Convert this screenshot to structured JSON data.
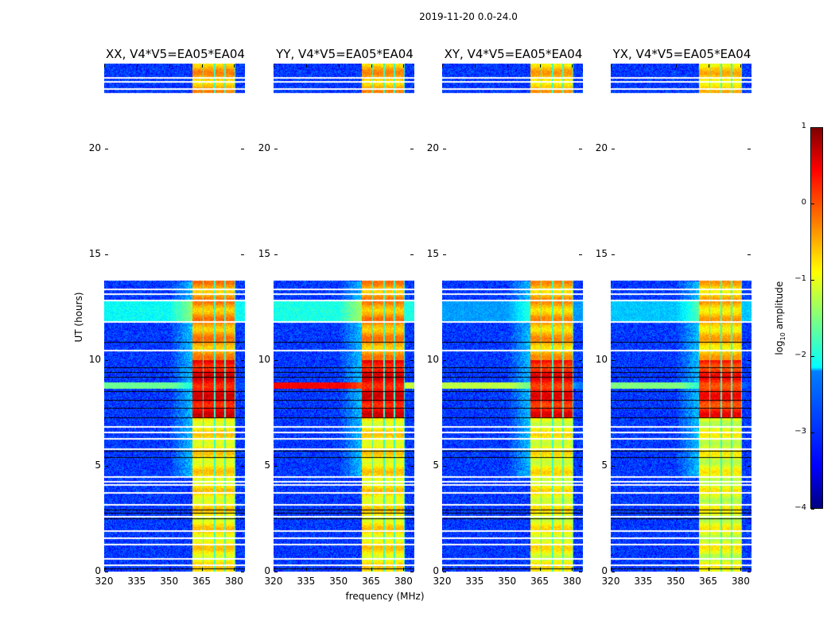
{
  "chart_data": {
    "type": "heatmap",
    "title": "2019-11-20 0.0-24.0",
    "xlabel": "frequency (MHz)",
    "ylabel": "UT (hours)",
    "xlim": [
      320,
      385
    ],
    "ylim": [
      0,
      24
    ],
    "xticks": [
      320,
      335,
      350,
      365,
      380
    ],
    "yticks": [
      0,
      5,
      10,
      15,
      20
    ],
    "colormap": "jet",
    "colorbar": {
      "label_prefix": "log",
      "label_sub": "10",
      "label_suffix": " amplitude",
      "range": [
        -4,
        1
      ],
      "ticks": [
        "1",
        "0",
        "−1",
        "−2",
        "−3",
        "−4"
      ],
      "tick_values": [
        1,
        0,
        -1,
        -2,
        -3,
        -4
      ]
    },
    "no_data_gaps": [
      [
        13.75,
        22.6
      ]
    ],
    "flagged_white_rows": [
      23.32,
      23.13,
      22.79,
      13.33,
      13.11,
      12.81,
      11.79,
      10.44,
      6.83,
      6.57,
      6.27,
      5.78,
      4.47,
      4.24,
      4.09,
      3.72,
      3.15,
      2.59,
      1.92,
      1.58,
      1.28,
      0.6,
      0.3
    ],
    "dark_rows": [
      10.85,
      9.65,
      9.43,
      9.2,
      8.52,
      8.11,
      7.74,
      7.28,
      5.71,
      5.41,
      2.93,
      2.78,
      2.52,
      0.15
    ],
    "background_level": -3.1,
    "rfi_subbands": [
      [
        360.8,
        365.6
      ],
      [
        365.6,
        371.1
      ],
      [
        371.1,
        375.9
      ],
      [
        375.9,
        380.7
      ]
    ],
    "rfi_time_profile": [
      {
        "from": 0,
        "to": 7.3,
        "level": -0.8
      },
      {
        "from": 7.3,
        "to": 10.0,
        "level": 0.4
      },
      {
        "from": 10.0,
        "to": 13.75,
        "level": -0.4
      },
      {
        "from": 22.6,
        "to": 24,
        "level": -0.5
      }
    ],
    "flare": {
      "from": 8.65,
      "to": 8.95
    },
    "panels": [
      {
        "title": "XX, V4*V5=EA05*EA04",
        "flare_level": -1.6,
        "rfi_offset": 0.0,
        "band_11_13_level": -2.1
      },
      {
        "title": "YY, V4*V5=EA05*EA04",
        "flare_level": 0.4,
        "rfi_offset": 0.0,
        "band_11_13_level": -2.0
      },
      {
        "title": "XY, V4*V5=EA05*EA04",
        "flare_level": -1.2,
        "rfi_offset": -0.1,
        "band_11_13_level": -2.6
      },
      {
        "title": "YX, V4*V5=EA05*EA04",
        "flare_level": -1.5,
        "rfi_offset": -0.2,
        "band_11_13_level": -2.4
      }
    ]
  }
}
